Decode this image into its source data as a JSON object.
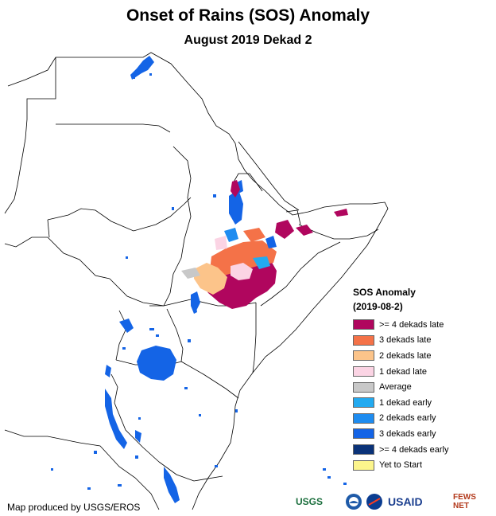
{
  "title": "Onset of Rains (SOS) Anomaly",
  "subtitle": "August 2019 Dekad 2",
  "legend": {
    "title": "SOS Anomaly",
    "date": "(2019-08-2)",
    "items": [
      {
        "label": ">= 4 dekads late",
        "color": "#b0065e"
      },
      {
        "label": "3 dekads late",
        "color": "#f47248"
      },
      {
        "label": "2 dekads late",
        "color": "#fcc48a"
      },
      {
        "label": "1 dekad late",
        "color": "#fbd4e4"
      },
      {
        "label": "Average",
        "color": "#c8c8c8"
      },
      {
        "label": "1 dekad early",
        "color": "#23aaf0"
      },
      {
        "label": "2 dekads early",
        "color": "#1e8cf0"
      },
      {
        "label": "3 dekads early",
        "color": "#1464e6"
      },
      {
        "label": ">= 4 dekads early",
        "color": "#0a3278"
      },
      {
        "label": "Yet to Start",
        "color": "#fcf58c"
      }
    ]
  },
  "credit": "Map produced by USGS/EROS",
  "logos": {
    "usgs": "USGS",
    "usaid": "USAID",
    "fews": "FEWS NET"
  }
}
